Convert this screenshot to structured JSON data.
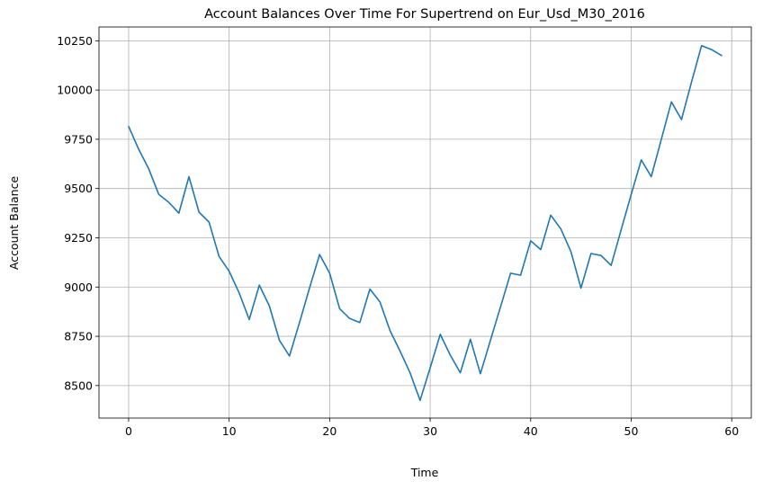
{
  "chart_data": {
    "type": "line",
    "title": "Account Balances Over Time For Supertrend on Eur_Usd_M30_2016",
    "xlabel": "Time",
    "ylabel": "Account Balance",
    "xlim": [
      -2.95,
      61.95
    ],
    "ylim": [
      8335,
      10320
    ],
    "xticks": [
      0,
      10,
      20,
      30,
      40,
      50,
      60
    ],
    "yticks": [
      8500,
      8750,
      9000,
      9250,
      9500,
      9750,
      10000,
      10250
    ],
    "grid": true,
    "series": [
      {
        "color": "#1f77b4",
        "x": [
          0,
          1,
          2,
          3,
          4,
          5,
          6,
          7,
          8,
          9,
          10,
          11,
          12,
          13,
          14,
          15,
          16,
          17,
          18,
          19,
          20,
          21,
          22,
          23,
          24,
          25,
          26,
          27,
          28,
          29,
          30,
          31,
          32,
          33,
          34,
          35,
          36,
          37,
          38,
          39,
          40,
          41,
          42,
          43,
          44,
          45,
          46,
          47,
          48,
          49,
          50,
          51,
          52,
          53,
          54,
          55,
          56,
          57,
          58,
          59
        ],
        "values": [
          9815,
          9700,
          9600,
          9470,
          9430,
          9375,
          9560,
          9380,
          9330,
          9155,
          9080,
          8970,
          8835,
          9010,
          8905,
          8730,
          8650,
          8820,
          8995,
          9165,
          9070,
          8890,
          8840,
          8820,
          8990,
          8925,
          8780,
          8675,
          8565,
          8425,
          8590,
          8760,
          8655,
          8565,
          8735,
          8560,
          8730,
          8900,
          9070,
          9060,
          9235,
          9190,
          9365,
          9295,
          9180,
          8995,
          9170,
          9160,
          9110,
          9290,
          9470,
          9645,
          9560,
          9750,
          9940,
          9850,
          10040,
          10225,
          10205,
          10175
        ]
      }
    ]
  }
}
